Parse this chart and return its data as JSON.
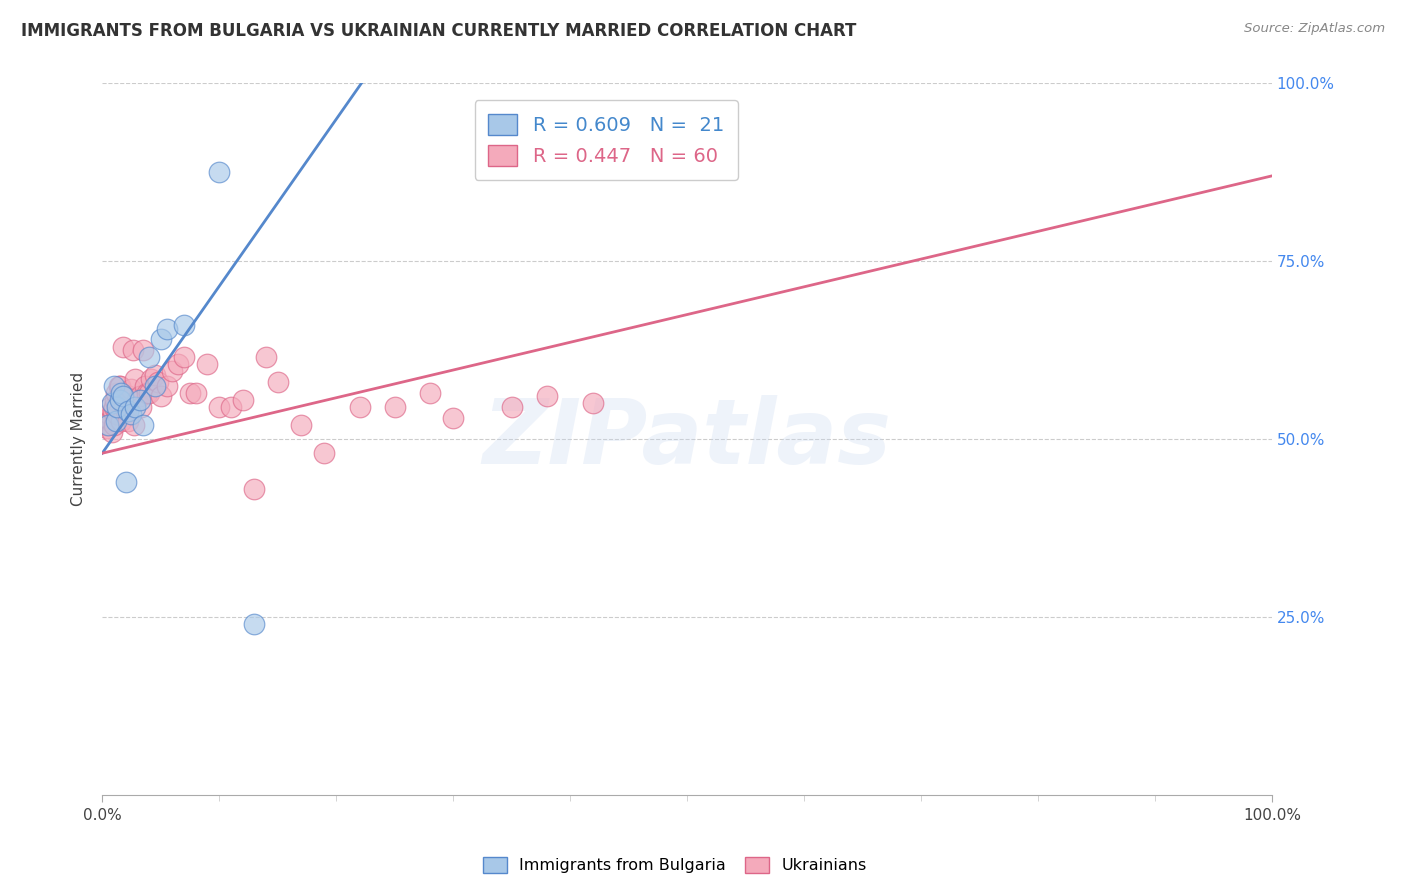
{
  "title": "IMMIGRANTS FROM BULGARIA VS UKRAINIAN CURRENTLY MARRIED CORRELATION CHART",
  "source": "Source: ZipAtlas.com",
  "ylabel": "Currently Married",
  "xlim": [
    0.0,
    1.0
  ],
  "ylim": [
    0.0,
    1.0
  ],
  "bg_color": "#ffffff",
  "grid_color": "#cccccc",
  "bulgaria_color": "#a8c8e8",
  "ukraine_color": "#f4aabb",
  "bulgaria_line_color": "#5588cc",
  "ukraine_line_color": "#dd6688",
  "legend_R_bulgaria": "0.609",
  "legend_N_bulgaria": "21",
  "legend_R_ukraine": "0.447",
  "legend_N_ukraine": "60",
  "watermark": "ZIPatlas",
  "bulgaria_x": [
    0.005,
    0.008,
    0.01,
    0.012,
    0.013,
    0.015,
    0.016,
    0.018,
    0.02,
    0.022,
    0.025,
    0.028,
    0.032,
    0.035,
    0.04,
    0.045,
    0.05,
    0.055,
    0.07,
    0.1,
    0.13
  ],
  "bulgaria_y": [
    0.52,
    0.55,
    0.575,
    0.525,
    0.545,
    0.555,
    0.565,
    0.56,
    0.44,
    0.54,
    0.535,
    0.545,
    0.555,
    0.52,
    0.615,
    0.575,
    0.64,
    0.655,
    0.66,
    0.875,
    0.24
  ],
  "ukraine_x": [
    0.003,
    0.004,
    0.005,
    0.006,
    0.007,
    0.007,
    0.008,
    0.009,
    0.01,
    0.01,
    0.011,
    0.012,
    0.013,
    0.014,
    0.015,
    0.016,
    0.017,
    0.018,
    0.019,
    0.02,
    0.021,
    0.022,
    0.023,
    0.025,
    0.026,
    0.027,
    0.028,
    0.03,
    0.032,
    0.033,
    0.035,
    0.037,
    0.038,
    0.04,
    0.042,
    0.045,
    0.048,
    0.05,
    0.055,
    0.06,
    0.065,
    0.07,
    0.075,
    0.08,
    0.09,
    0.1,
    0.11,
    0.12,
    0.13,
    0.14,
    0.15,
    0.17,
    0.19,
    0.22,
    0.25,
    0.28,
    0.3,
    0.35,
    0.38,
    0.42
  ],
  "ukraine_y": [
    0.52,
    0.515,
    0.53,
    0.535,
    0.525,
    0.545,
    0.51,
    0.54,
    0.52,
    0.545,
    0.555,
    0.565,
    0.535,
    0.575,
    0.575,
    0.525,
    0.555,
    0.63,
    0.545,
    0.54,
    0.555,
    0.525,
    0.56,
    0.57,
    0.625,
    0.52,
    0.585,
    0.555,
    0.56,
    0.545,
    0.625,
    0.575,
    0.565,
    0.565,
    0.585,
    0.59,
    0.58,
    0.56,
    0.575,
    0.595,
    0.605,
    0.615,
    0.565,
    0.565,
    0.605,
    0.545,
    0.545,
    0.555,
    0.43,
    0.615,
    0.58,
    0.52,
    0.48,
    0.545,
    0.545,
    0.565,
    0.53,
    0.545,
    0.56,
    0.55
  ],
  "bulgaria_line_x": [
    0.0,
    0.23
  ],
  "bulgaria_line_y": [
    0.48,
    1.02
  ],
  "ukraine_line_x": [
    0.0,
    1.0
  ],
  "ukraine_line_y": [
    0.48,
    0.87
  ]
}
